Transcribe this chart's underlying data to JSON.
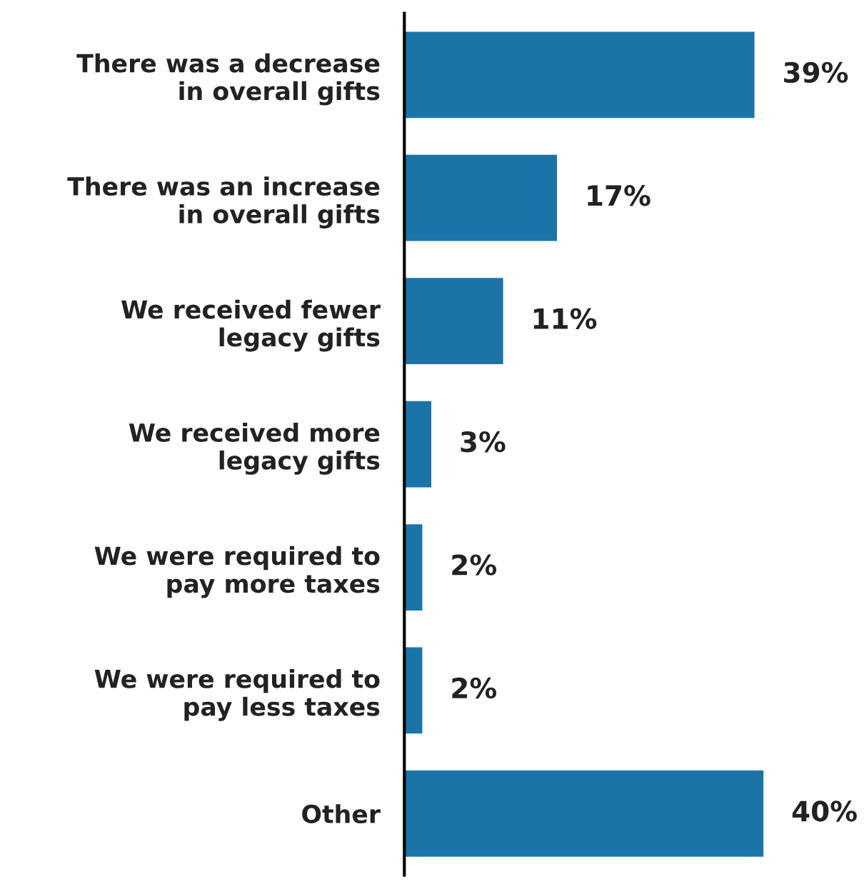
{
  "chart_data": {
    "type": "bar",
    "orientation": "horizontal",
    "categories": [
      "There was a decrease\nin overall gifts",
      "There was an increase\nin overall gifts",
      "We received fewer\nlegacy gifts",
      "We received more\nlegacy gifts",
      "We were required to\npay more taxes",
      "We were required to\npay less taxes",
      "Other"
    ],
    "values": [
      39,
      17,
      11,
      3,
      2,
      2,
      40
    ],
    "value_labels": [
      "39%",
      "17%",
      "11%",
      "3%",
      "2%",
      "2%",
      "40%"
    ],
    "color": "#1a74a8",
    "tick_labels": "y",
    "grid": false
  }
}
